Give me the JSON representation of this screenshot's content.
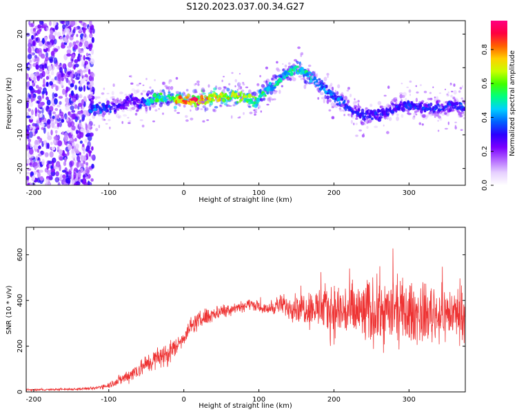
{
  "title": "S120.2023.037.00.34.G27",
  "chart_data": [
    {
      "type": "heatmap",
      "xlabel": "Height of straight line (km)",
      "ylabel": "Frequency (Hz)",
      "xlim": [
        -210,
        375
      ],
      "ylim": [
        -25,
        24
      ],
      "xticks": [
        -200,
        -100,
        0,
        100,
        200,
        300
      ],
      "yticks": [
        -20,
        -10,
        0,
        10,
        20
      ],
      "colorbar": {
        "label": "Normalized spectral amplitude",
        "ticks": [
          0.0,
          0.2,
          0.4,
          0.6,
          0.8
        ],
        "range": [
          0,
          0.97
        ],
        "colormap": [
          "#ffffff",
          "#e6d0ff",
          "#b366ff",
          "#7a00ff",
          "#2b00ff",
          "#0060ff",
          "#00d0ff",
          "#00ff80",
          "#40ff00",
          "#c8ff00",
          "#ffd000",
          "#ff6000",
          "#ff0040",
          "#ff0080"
        ]
      },
      "ridge": {
        "x": [
          -120,
          -100,
          -80,
          -70,
          -60,
          -40,
          -20,
          0,
          20,
          40,
          60,
          80,
          95,
          105,
          120,
          135,
          150,
          165,
          180,
          195,
          210,
          225,
          240,
          260,
          280,
          300,
          320,
          340,
          360,
          375
        ],
        "freq": [
          -2,
          -2,
          -1,
          1,
          -1,
          1,
          1,
          0,
          0,
          1,
          1.5,
          1.5,
          0,
          2,
          5,
          7.5,
          10,
          8,
          5,
          2,
          0,
          -3,
          -4,
          -4,
          -2,
          -1,
          -2,
          -2,
          -1,
          -2
        ],
        "amplitude": [
          0.4,
          0.35,
          0.3,
          0.3,
          0.3,
          0.55,
          0.6,
          0.95,
          0.9,
          0.8,
          0.75,
          0.7,
          0.6,
          0.55,
          0.5,
          0.5,
          0.6,
          0.5,
          0.45,
          0.4,
          0.4,
          0.35,
          0.35,
          0.35,
          0.35,
          0.35,
          0.35,
          0.35,
          0.35,
          0.35
        ]
      }
    },
    {
      "type": "line",
      "xlabel": "Height of straight line (km)",
      "ylabel": "SNR (10 * v/v)",
      "xlim": [
        -210,
        375
      ],
      "ylim": [
        0,
        720
      ],
      "xticks": [
        -200,
        -100,
        0,
        100,
        200,
        300
      ],
      "yticks": [
        0,
        200,
        400,
        600
      ],
      "color": "#ee3333",
      "series": [
        {
          "x": [
            -210,
            -180,
            -150,
            -120,
            -100,
            -80,
            -60,
            -40,
            -20,
            -10,
            0,
            10,
            30,
            50,
            70,
            90,
            110,
            125,
            140,
            160,
            180,
            200,
            220,
            240,
            260,
            280,
            300,
            320,
            340,
            360,
            375
          ],
          "mean": [
            8,
            10,
            12,
            15,
            30,
            60,
            100,
            140,
            170,
            200,
            240,
            290,
            330,
            355,
            370,
            385,
            360,
            380,
            375,
            370,
            365,
            355,
            350,
            345,
            350,
            350,
            345,
            340,
            340,
            345,
            340
          ],
          "spread": [
            6,
            6,
            8,
            10,
            20,
            40,
            60,
            70,
            80,
            60,
            50,
            55,
            60,
            45,
            40,
            35,
            30,
            60,
            80,
            110,
            140,
            180,
            200,
            220,
            220,
            210,
            200,
            190,
            180,
            170,
            160
          ]
        }
      ]
    }
  ]
}
